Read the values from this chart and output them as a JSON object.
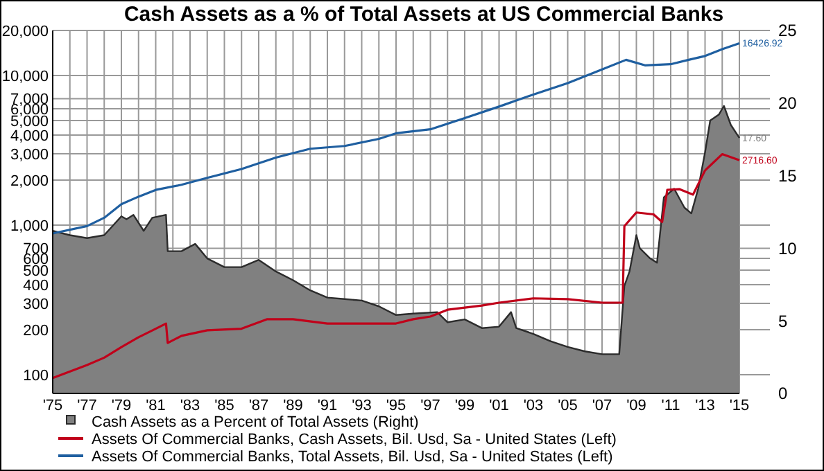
{
  "chart_data": {
    "type": "line",
    "title": "Cash Assets as a % of Total Assets at US Commercial Banks",
    "xlim": [
      1975,
      2015
    ],
    "xticks": [
      {
        "value": 1975,
        "label": "'75"
      },
      {
        "value": 1976,
        "label": null
      },
      {
        "value": 1977,
        "label": "'77"
      },
      {
        "value": 1978,
        "label": null
      },
      {
        "value": 1979,
        "label": "'79"
      },
      {
        "value": 1980,
        "label": null
      },
      {
        "value": 1981,
        "label": "'81"
      },
      {
        "value": 1982,
        "label": null
      },
      {
        "value": 1983,
        "label": "'83"
      },
      {
        "value": 1984,
        "label": null
      },
      {
        "value": 1985,
        "label": "'85"
      },
      {
        "value": 1986,
        "label": null
      },
      {
        "value": 1987,
        "label": "'87"
      },
      {
        "value": 1988,
        "label": null
      },
      {
        "value": 1989,
        "label": "'89"
      },
      {
        "value": 1990,
        "label": null
      },
      {
        "value": 1991,
        "label": "'91"
      },
      {
        "value": 1992,
        "label": null
      },
      {
        "value": 1993,
        "label": "'93"
      },
      {
        "value": 1994,
        "label": null
      },
      {
        "value": 1995,
        "label": "'95"
      },
      {
        "value": 1996,
        "label": null
      },
      {
        "value": 1997,
        "label": "'97"
      },
      {
        "value": 1998,
        "label": null
      },
      {
        "value": 1999,
        "label": "'99"
      },
      {
        "value": 2000,
        "label": null
      },
      {
        "value": 2001,
        "label": "'01"
      },
      {
        "value": 2002,
        "label": null
      },
      {
        "value": 2003,
        "label": "'03"
      },
      {
        "value": 2004,
        "label": null
      },
      {
        "value": 2005,
        "label": "'05"
      },
      {
        "value": 2006,
        "label": null
      },
      {
        "value": 2007,
        "label": "'07"
      },
      {
        "value": 2008,
        "label": null
      },
      {
        "value": 2009,
        "label": "'09"
      },
      {
        "value": 2010,
        "label": null
      },
      {
        "value": 2011,
        "label": "'11"
      },
      {
        "value": 2012,
        "label": null
      },
      {
        "value": 2013,
        "label": "'13"
      },
      {
        "value": 2014,
        "label": null
      },
      {
        "value": 2015,
        "label": "'15"
      }
    ],
    "log": "y",
    "ylim": [
      75,
      20000
    ],
    "yticks": [
      100,
      200,
      300,
      400,
      500,
      600,
      700,
      {
        "value": 1000,
        "label": "1,000"
      },
      {
        "value": 2000,
        "label": "2,000"
      },
      {
        "value": 3000,
        "label": "3,000"
      },
      {
        "value": 4000,
        "label": "4,000"
      },
      {
        "value": 5000,
        "label": "5,000"
      },
      {
        "value": 6000,
        "label": "6,000"
      },
      {
        "value": 7000,
        "label": "7,000"
      },
      {
        "value": 10000,
        "label": "10,000"
      },
      {
        "value": 20000,
        "label": "20,000"
      }
    ],
    "y2lim": [
      0,
      25
    ],
    "y2ticks": [
      0,
      5,
      10,
      15,
      20,
      25
    ],
    "grid": true,
    "legend": "bottom",
    "series": [
      {
        "name": "Cash Assets as a Percent of Total Assets  (Right)",
        "type": "area",
        "axis": "y2",
        "color": "#808080",
        "x": [
          1975,
          1976,
          1977,
          1978,
          1979,
          1979.3,
          1979.7,
          1980.3,
          1980.8,
          1981.6,
          1981.7,
          1982.5,
          1983.3,
          1984,
          1985,
          1986,
          1987,
          1988,
          1989,
          1990,
          1991,
          1992,
          1993,
          1994,
          1995,
          1996,
          1997.4,
          1998,
          1999,
          2000,
          2001,
          2001.7,
          2002,
          2003,
          2004,
          2005,
          2006,
          2007,
          2008,
          2008.3,
          2008.6,
          2009,
          2009.2,
          2009.8,
          2010.2,
          2010.6,
          2011.2,
          2011.8,
          2012.2,
          2012.6,
          2013,
          2013.3,
          2013.8,
          2014.1,
          2014.5,
          2015
        ],
        "values": [
          11.2,
          10.9,
          10.7,
          10.9,
          12.2,
          12.0,
          12.3,
          11.2,
          12.1,
          12.3,
          9.8,
          9.8,
          10.3,
          9.3,
          8.7,
          8.7,
          9.2,
          8.4,
          7.8,
          7.1,
          6.6,
          6.5,
          6.4,
          6.0,
          5.4,
          5.5,
          5.6,
          4.9,
          5.1,
          4.5,
          4.6,
          5.6,
          4.5,
          4.1,
          3.6,
          3.2,
          2.9,
          2.7,
          2.7,
          7.4,
          8.4,
          10.9,
          10.0,
          9.3,
          9.0,
          13.5,
          14.1,
          12.8,
          12.4,
          14.1,
          16.6,
          18.8,
          19.2,
          19.8,
          18.5,
          17.6
        ]
      },
      {
        "name": "Assets Of Commercial Banks, Cash Assets, Bil. Usd, Sa - United States  (Left)",
        "axis": "y",
        "color": "#c0001a",
        "x": [
          1975,
          1977,
          1978,
          1979,
          1980,
          1981,
          1981.6,
          1981.7,
          1982.5,
          1984,
          1986,
          1987.5,
          1989,
          1991,
          1993,
          1995,
          1996,
          1997,
          1998,
          2000,
          2001,
          2003,
          2005,
          2007,
          2008.2,
          2008.3,
          2009,
          2010,
          2010.5,
          2010.8,
          2011.5,
          2012.3,
          2013,
          2014,
          2015
        ],
        "values": [
          95,
          116,
          130,
          153,
          178,
          203,
          220,
          163,
          182,
          198,
          203,
          235,
          235,
          220,
          220,
          220,
          235,
          245,
          272,
          290,
          303,
          324,
          320,
          303,
          303,
          985,
          1215,
          1180,
          1050,
          1720,
          1740,
          1600,
          2320,
          2980,
          2716.6
        ]
      },
      {
        "name": "Assets Of Commercial Banks, Total Assets, Bil. Usd, Sa - United States  (Left)",
        "axis": "y",
        "color": "#1f5fa0",
        "x": [
          1975,
          1977,
          1978,
          1979,
          1980,
          1981,
          1982.5,
          1984,
          1986,
          1988,
          1990,
          1992,
          1994,
          1995,
          1997,
          1999,
          2001,
          2003,
          2005,
          2007,
          2008.4,
          2009.5,
          2011,
          2012,
          2013,
          2014,
          2015
        ],
        "values": [
          880,
          985,
          1120,
          1380,
          1550,
          1720,
          1860,
          2070,
          2370,
          2830,
          3240,
          3380,
          3770,
          4110,
          4370,
          5190,
          6200,
          7470,
          8900,
          10990,
          12730,
          11700,
          11900,
          12700,
          13500,
          15000,
          16426.92
        ]
      }
    ],
    "annotations": [
      "17.60",
      "2716.60",
      "16426.92"
    ]
  }
}
